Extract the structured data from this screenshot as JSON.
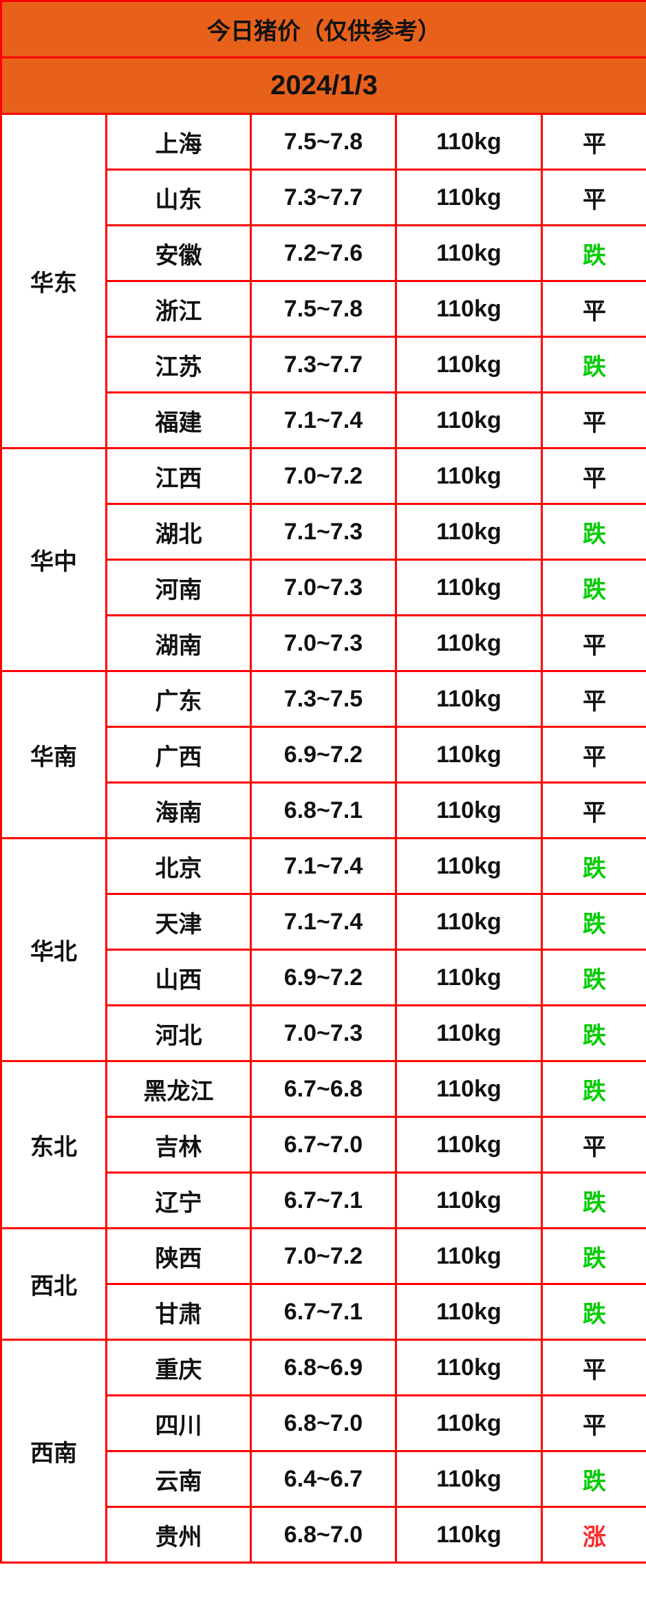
{
  "header": {
    "title": "今日猪价（仅供参考）",
    "date": "2024/1/3"
  },
  "colors": {
    "header_bg": "#e8611a",
    "border": "#ff0000",
    "down": "#00cc00",
    "up": "#ff2a2a",
    "flat": "#111111"
  },
  "regions": [
    {
      "name": "华东",
      "rows": [
        {
          "province": "上海",
          "price": "7.5~7.8",
          "weight": "110kg",
          "trend": "平"
        },
        {
          "province": "山东",
          "price": "7.3~7.7",
          "weight": "110kg",
          "trend": "平"
        },
        {
          "province": "安徽",
          "price": "7.2~7.6",
          "weight": "110kg",
          "trend": "跌"
        },
        {
          "province": "浙江",
          "price": "7.5~7.8",
          "weight": "110kg",
          "trend": "平"
        },
        {
          "province": "江苏",
          "price": "7.3~7.7",
          "weight": "110kg",
          "trend": "跌"
        },
        {
          "province": "福建",
          "price": "7.1~7.4",
          "weight": "110kg",
          "trend": "平"
        }
      ]
    },
    {
      "name": "华中",
      "rows": [
        {
          "province": "江西",
          "price": "7.0~7.2",
          "weight": "110kg",
          "trend": "平"
        },
        {
          "province": "湖北",
          "price": "7.1~7.3",
          "weight": "110kg",
          "trend": "跌"
        },
        {
          "province": "河南",
          "price": "7.0~7.3",
          "weight": "110kg",
          "trend": "跌"
        },
        {
          "province": "湖南",
          "price": "7.0~7.3",
          "weight": "110kg",
          "trend": "平"
        }
      ]
    },
    {
      "name": "华南",
      "rows": [
        {
          "province": "广东",
          "price": "7.3~7.5",
          "weight": "110kg",
          "trend": "平"
        },
        {
          "province": "广西",
          "price": "6.9~7.2",
          "weight": "110kg",
          "trend": "平"
        },
        {
          "province": "海南",
          "price": "6.8~7.1",
          "weight": "110kg",
          "trend": "平"
        }
      ]
    },
    {
      "name": "华北",
      "rows": [
        {
          "province": "北京",
          "price": "7.1~7.4",
          "weight": "110kg",
          "trend": "跌"
        },
        {
          "province": "天津",
          "price": "7.1~7.4",
          "weight": "110kg",
          "trend": "跌"
        },
        {
          "province": "山西",
          "price": "6.9~7.2",
          "weight": "110kg",
          "trend": "跌"
        },
        {
          "province": "河北",
          "price": "7.0~7.3",
          "weight": "110kg",
          "trend": "跌"
        }
      ]
    },
    {
      "name": "东北",
      "rows": [
        {
          "province": "黑龙江",
          "price": "6.7~6.8",
          "weight": "110kg",
          "trend": "跌"
        },
        {
          "province": "吉林",
          "price": "6.7~7.0",
          "weight": "110kg",
          "trend": "平"
        },
        {
          "province": "辽宁",
          "price": "6.7~7.1",
          "weight": "110kg",
          "trend": "跌"
        }
      ]
    },
    {
      "name": "西北",
      "rows": [
        {
          "province": "陕西",
          "price": "7.0~7.2",
          "weight": "110kg",
          "trend": "跌"
        },
        {
          "province": "甘肃",
          "price": "6.7~7.1",
          "weight": "110kg",
          "trend": "跌"
        }
      ]
    },
    {
      "name": "西南",
      "rows": [
        {
          "province": "重庆",
          "price": "6.8~6.9",
          "weight": "110kg",
          "trend": "平"
        },
        {
          "province": "四川",
          "price": "6.8~7.0",
          "weight": "110kg",
          "trend": "平"
        },
        {
          "province": "云南",
          "price": "6.4~6.7",
          "weight": "110kg",
          "trend": "跌"
        },
        {
          "province": "贵州",
          "price": "6.8~7.0",
          "weight": "110kg",
          "trend": "涨"
        }
      ]
    }
  ]
}
